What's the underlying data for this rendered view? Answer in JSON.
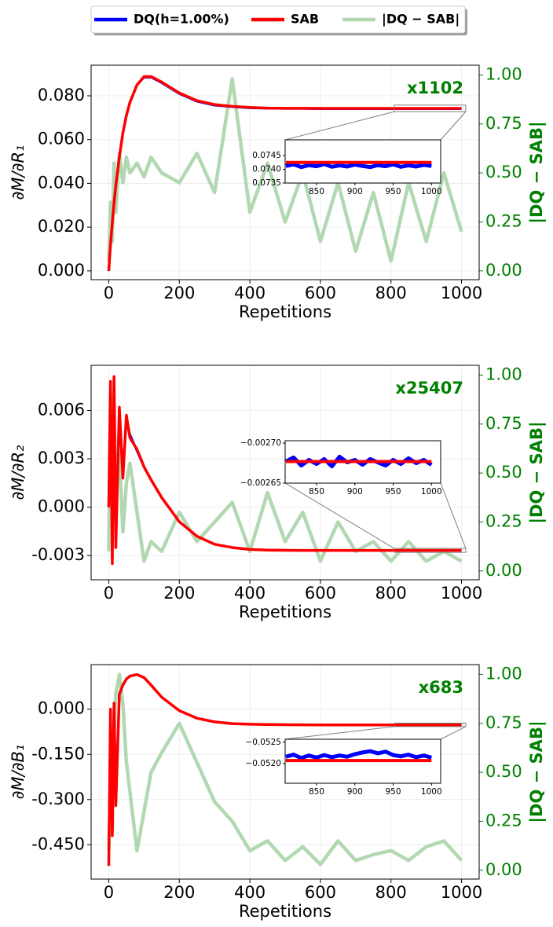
{
  "chart_data": [
    {
      "type": "line",
      "annotation": "x1102",
      "ylabel": "∂M/∂R₁",
      "y2label": "|DQ − SAB|",
      "xlabel": "Repetitions",
      "grid": true,
      "xlim": [
        -50,
        1050
      ],
      "xticks": [
        0,
        200,
        400,
        600,
        800,
        1000
      ],
      "ylim": [
        -0.004,
        0.094
      ],
      "yticks": [
        {
          "value": 0,
          "label": "0.000"
        },
        {
          "value": 0.02,
          "label": "0.020"
        },
        {
          "value": 0.04,
          "label": "0.040"
        },
        {
          "value": 0.06,
          "label": "0.060"
        },
        {
          "value": 0.08,
          "label": "0.080"
        }
      ],
      "y2lim": [
        -0.045,
        1.05
      ],
      "y2ticks": [
        {
          "value": 0,
          "label": "0.00"
        },
        {
          "value": 0.25,
          "label": "0.25"
        },
        {
          "value": 0.5,
          "label": "0.50"
        },
        {
          "value": 0.75,
          "label": "0.75"
        },
        {
          "value": 1,
          "label": "1.00"
        }
      ],
      "x": [
        0,
        5,
        10,
        15,
        20,
        30,
        40,
        50,
        60,
        80,
        100,
        120,
        150,
        200,
        250,
        300,
        350,
        400,
        450,
        500,
        550,
        600,
        650,
        700,
        750,
        800,
        850,
        900,
        950,
        1000
      ],
      "series": [
        {
          "name": "|DQ − SAB|",
          "color": "#b2d8b2",
          "axis": "y2",
          "values": [
            0.05,
            0.35,
            0.15,
            0.55,
            0.3,
            0.6,
            0.45,
            0.58,
            0.5,
            0.55,
            0.48,
            0.58,
            0.5,
            0.45,
            0.6,
            0.4,
            0.98,
            0.3,
            0.55,
            0.25,
            0.5,
            0.15,
            0.45,
            0.1,
            0.4,
            0.05,
            0.45,
            0.15,
            0.5,
            0.2
          ]
        },
        {
          "name": "DQ(h=1.00%)",
          "color": "#0000ff",
          "values": [
            0,
            0.012,
            0.022,
            0.031,
            0.039,
            0.052,
            0.063,
            0.071,
            0.077,
            0.085,
            0.0885,
            0.0885,
            0.086,
            0.081,
            0.0775,
            0.0757,
            0.075,
            0.0745,
            0.0743,
            0.0742,
            0.0742,
            0.0741,
            0.0741,
            0.0741,
            0.0741,
            0.0741,
            0.0741,
            0.0741,
            0.0741,
            0.0741
          ]
        },
        {
          "name": "SAB",
          "color": "#ff0000",
          "values": [
            0,
            0.012,
            0.022,
            0.031,
            0.039,
            0.052,
            0.063,
            0.071,
            0.077,
            0.085,
            0.0888,
            0.0888,
            0.0863,
            0.0813,
            0.0778,
            0.076,
            0.0752,
            0.0747,
            0.0744,
            0.0743,
            0.07428,
            0.07426,
            0.07425,
            0.07425,
            0.07425,
            0.07425,
            0.07425,
            0.07425,
            0.07425,
            0.07425
          ]
        }
      ],
      "inset": {
        "xlim": [
          809,
          1012
        ],
        "xticks": [
          850,
          900,
          950,
          1000
        ],
        "ylim": [
          0.0735,
          0.07507
        ],
        "yticks": [
          {
            "value": 0.0735,
            "label": "0.0735"
          },
          {
            "value": 0.074,
            "label": "0.0740"
          },
          {
            "value": 0.0745,
            "label": "0.0745"
          }
        ],
        "x": [
          810,
          820,
          830,
          840,
          850,
          860,
          870,
          880,
          890,
          900,
          910,
          920,
          930,
          940,
          950,
          960,
          970,
          980,
          990,
          1000
        ],
        "series": [
          {
            "color": "#0000ff",
            "values": [
              0.07412,
              0.07418,
              0.07408,
              0.07415,
              0.07411,
              0.07419,
              0.07409,
              0.07414,
              0.0741,
              0.07417,
              0.07412,
              0.07408,
              0.07415,
              0.07411,
              0.07418,
              0.07409,
              0.07414,
              0.0741,
              0.07416,
              0.07412
            ]
          },
          {
            "color": "#ff0000",
            "values": [
              0.07425,
              0.07425,
              0.07425,
              0.07425,
              0.07425,
              0.07425,
              0.07425,
              0.07425,
              0.07425,
              0.07425,
              0.07425,
              0.07425,
              0.07425,
              0.07425,
              0.07425,
              0.07425,
              0.07425,
              0.07425,
              0.07425,
              0.07425
            ]
          }
        ]
      }
    },
    {
      "type": "line",
      "annotation": "x25407",
      "ylabel": "∂M/∂R₂",
      "y2label": "|DQ − SAB|",
      "xlabel": "Repetitions",
      "grid": true,
      "xlim": [
        -50,
        1050
      ],
      "xticks": [
        0,
        200,
        400,
        600,
        800,
        1000
      ],
      "ylim": [
        -0.0045,
        0.0088
      ],
      "yticks": [
        {
          "value": -0.003,
          "label": "-0.003"
        },
        {
          "value": 0,
          "label": "0.000"
        },
        {
          "value": 0.003,
          "label": "0.003"
        },
        {
          "value": 0.006,
          "label": "0.006"
        }
      ],
      "y2lim": [
        -0.045,
        1.05
      ],
      "y2ticks": [
        {
          "value": 0,
          "label": "0.00"
        },
        {
          "value": 0.25,
          "label": "0.25"
        },
        {
          "value": 0.5,
          "label": "0.50"
        },
        {
          "value": 0.75,
          "label": "0.75"
        },
        {
          "value": 1,
          "label": "1.00"
        }
      ],
      "x": [
        0,
        5,
        10,
        15,
        20,
        30,
        40,
        50,
        60,
        80,
        100,
        120,
        150,
        200,
        250,
        300,
        350,
        400,
        450,
        500,
        550,
        600,
        650,
        700,
        750,
        800,
        850,
        900,
        950,
        1000
      ],
      "series": [
        {
          "name": "|DQ − SAB|",
          "color": "#b2d8b2",
          "axis": "y2",
          "values": [
            0.1,
            0.9,
            0.3,
            0.85,
            0.4,
            0.6,
            0.2,
            0.45,
            0.55,
            0.3,
            0.05,
            0.15,
            0.1,
            0.3,
            0.15,
            0.25,
            0.35,
            0.1,
            0.4,
            0.15,
            0.3,
            0.05,
            0.25,
            0.1,
            0.15,
            0.05,
            0.15,
            0.05,
            0.1,
            0.05
          ]
        },
        {
          "name": "DQ(h=1.00%)",
          "color": "#0000ff",
          "values": [
            0,
            0.0075,
            -0.003,
            0.008,
            -0.002,
            0.006,
            0.002,
            0.0055,
            0.0045,
            0.0035,
            0.0025,
            0.0017,
            0.0006,
            -0.0009,
            -0.0018,
            -0.0023,
            -0.0025,
            -0.00262,
            -0.00266,
            -0.00267,
            -0.00268,
            -0.00268,
            -0.00268,
            -0.00268,
            -0.00268,
            -0.00268,
            -0.00268,
            -0.00268,
            -0.00268,
            -0.00268
          ]
        },
        {
          "name": "SAB",
          "color": "#ff0000",
          "values": [
            0,
            0.0078,
            -0.0035,
            0.0081,
            -0.0025,
            0.0062,
            0.0018,
            0.0057,
            0.0043,
            0.0036,
            0.0025,
            0.0017,
            0.0006,
            -0.0009,
            -0.0018,
            -0.0023,
            -0.0025,
            -0.00262,
            -0.00266,
            -0.00267,
            -0.00268,
            -0.00268,
            -0.00268,
            -0.00268,
            -0.00268,
            -0.00268,
            -0.00268,
            -0.00268,
            -0.00268,
            -0.00268
          ]
        }
      ],
      "inset": {
        "xlim": [
          809,
          1012
        ],
        "xticks": [
          850,
          900,
          950,
          1000
        ],
        "ylim": [
          -0.00265,
          -0.002703
        ],
        "yticks": [
          {
            "value": -0.00265,
            "label": "−0.00265"
          },
          {
            "value": -0.0027,
            "label": "−0.00270"
          }
        ],
        "x": [
          810,
          820,
          830,
          840,
          850,
          860,
          870,
          880,
          890,
          900,
          910,
          920,
          930,
          940,
          950,
          960,
          970,
          980,
          990,
          1000
        ],
        "series": [
          {
            "color": "#0000ff",
            "values": [
              -0.002677,
              -0.002682,
              -0.002672,
              -0.002679,
              -0.002674,
              -0.00268,
              -0.002671,
              -0.002683,
              -0.002676,
              -0.002679,
              -0.002673,
              -0.00268,
              -0.002676,
              -0.002672,
              -0.002679,
              -0.002674,
              -0.002681,
              -0.002675,
              -0.002679,
              -0.002673
            ]
          },
          {
            "color": "#ff0000",
            "values": [
              -0.002677,
              -0.002677,
              -0.002677,
              -0.002677,
              -0.002677,
              -0.002677,
              -0.002677,
              -0.002677,
              -0.002677,
              -0.002677,
              -0.002677,
              -0.002677,
              -0.002677,
              -0.002677,
              -0.002677,
              -0.002677,
              -0.002677,
              -0.002677,
              -0.002677,
              -0.002677
            ]
          }
        ]
      }
    },
    {
      "type": "line",
      "annotation": "x683",
      "ylabel": "∂M/∂B₁",
      "y2label": "|DQ − SAB|",
      "xlabel": "Repetitions",
      "grid": true,
      "xlim": [
        -50,
        1050
      ],
      "xticks": [
        0,
        200,
        400,
        600,
        800,
        1000
      ],
      "ylim": [
        -0.564,
        0.148
      ],
      "yticks": [
        {
          "value": -0.45,
          "label": "-0.450"
        },
        {
          "value": -0.3,
          "label": "-0.300"
        },
        {
          "value": -0.15,
          "label": "-0.150"
        },
        {
          "value": 0,
          "label": "0.000"
        }
      ],
      "y2lim": [
        -0.045,
        1.05
      ],
      "y2ticks": [
        {
          "value": 0,
          "label": "0.00"
        },
        {
          "value": 0.25,
          "label": "0.25"
        },
        {
          "value": 0.5,
          "label": "0.50"
        },
        {
          "value": 0.75,
          "label": "0.75"
        },
        {
          "value": 1,
          "label": "1.00"
        }
      ],
      "x": [
        0,
        5,
        10,
        15,
        20,
        30,
        40,
        50,
        60,
        80,
        100,
        120,
        150,
        200,
        250,
        300,
        350,
        400,
        450,
        500,
        550,
        600,
        650,
        700,
        750,
        800,
        850,
        900,
        950,
        1000
      ],
      "series": [
        {
          "name": "|DQ − SAB|",
          "color": "#b2d8b2",
          "axis": "y2",
          "values": [
            0.1,
            0.4,
            0.2,
            0.7,
            0.9,
            1.0,
            0.85,
            0.55,
            0.4,
            0.1,
            0.3,
            0.5,
            0.6,
            0.75,
            0.55,
            0.35,
            0.25,
            0.1,
            0.15,
            0.05,
            0.12,
            0.03,
            0.15,
            0.05,
            0.08,
            0.1,
            0.05,
            0.12,
            0.15,
            0.05
          ]
        },
        {
          "name": "DQ(h=1.00%)",
          "color": "#0000ff",
          "values": [
            -0.5,
            0,
            -0.4,
            0.02,
            -0.3,
            0.05,
            0.08,
            0.1,
            0.11,
            0.115,
            0.105,
            0.08,
            0.04,
            -0.005,
            -0.03,
            -0.042,
            -0.048,
            -0.05,
            -0.051,
            -0.0515,
            -0.0518,
            -0.052,
            -0.052,
            -0.052,
            -0.052,
            -0.052,
            -0.052,
            -0.052,
            -0.052,
            -0.052
          ]
        },
        {
          "name": "SAB",
          "color": "#ff0000",
          "values": [
            -0.52,
            0,
            -0.42,
            0.02,
            -0.32,
            0.05,
            0.08,
            0.1,
            0.11,
            0.115,
            0.105,
            0.08,
            0.04,
            -0.005,
            -0.03,
            -0.042,
            -0.048,
            -0.05,
            -0.051,
            -0.0515,
            -0.0518,
            -0.052,
            -0.052,
            -0.052,
            -0.052,
            -0.052,
            -0.052,
            -0.052,
            -0.052,
            -0.052
          ]
        }
      ],
      "inset": {
        "xlim": [
          809,
          1012
        ],
        "xticks": [
          850,
          900,
          950,
          1000
        ],
        "ylim": [
          -0.05154,
          -0.05257
        ],
        "yticks": [
          {
            "value": -0.052,
            "label": "−0.0520"
          },
          {
            "value": -0.0525,
            "label": "−0.0525"
          }
        ],
        "x": [
          810,
          820,
          830,
          840,
          850,
          860,
          870,
          880,
          890,
          900,
          910,
          920,
          930,
          940,
          950,
          960,
          970,
          980,
          990,
          1000
        ],
        "series": [
          {
            "color": "#0000ff",
            "values": [
              -0.05216,
              -0.05221,
              -0.05213,
              -0.05219,
              -0.05214,
              -0.0522,
              -0.05215,
              -0.05219,
              -0.05216,
              -0.05222,
              -0.05226,
              -0.05229,
              -0.05224,
              -0.05228,
              -0.0522,
              -0.05217,
              -0.05221,
              -0.05215,
              -0.05219,
              -0.05214
            ]
          },
          {
            "color": "#ff0000",
            "values": [
              -0.05207,
              -0.05207,
              -0.05207,
              -0.05207,
              -0.05207,
              -0.05207,
              -0.05207,
              -0.05207,
              -0.05207,
              -0.05207,
              -0.05207,
              -0.05207,
              -0.05207,
              -0.05207,
              -0.05207,
              -0.05207,
              -0.05207,
              -0.05207,
              -0.05207,
              -0.05207
            ]
          }
        ]
      }
    }
  ]
}
